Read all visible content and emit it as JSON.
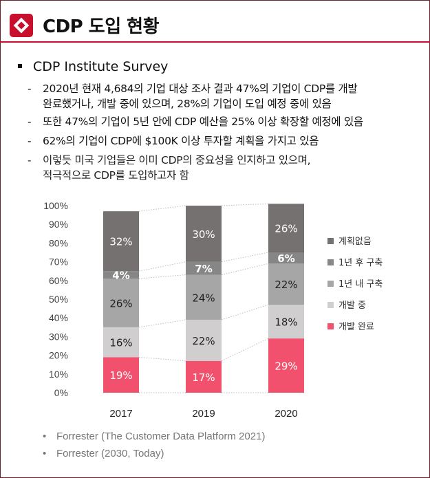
{
  "header": {
    "title": "CDP 도입 현황"
  },
  "colors": {
    "accent": "#c8102e",
    "plan_none": "#767171",
    "plan_1y_after": "#868686",
    "plan_1y_within": "#a6a6a6",
    "developing": "#d0cece",
    "done": "#f1516c"
  },
  "main_bullet": "CDP Institute Survey",
  "sub_bullets": [
    {
      "line1": "2020년 현재 4,684의 기업 대상 조사 결과 47%의 기업이 CDP를 개발",
      "line2": "완료했거나, 개발 중에 있으며, 28%의 기업이 도입 예정 중에 있음"
    },
    {
      "line1": "또한 47%의 기업이 5년 안에 CDP 예산을 25% 이상 확장할 예정에 있음",
      "line2": ""
    },
    {
      "line1": "62%의 기업이 CDP에 $100K 이상 투자할 계획을 가지고 있음",
      "line2": ""
    },
    {
      "line1": "이렇듯 미국 기업들은 이미 CDP의 중요성을 인지하고 있으며,",
      "line2": "적극적으로 CDP를 도입하고자 함"
    }
  ],
  "chart_data": {
    "type": "bar",
    "stacked": true,
    "normalized": true,
    "categories": [
      "2017",
      "2019",
      "2020"
    ],
    "series": [
      {
        "name": "개발 완료",
        "values": [
          19,
          17,
          29
        ],
        "labels": [
          "19%",
          "17%",
          "29%"
        ],
        "color": "#f1516c"
      },
      {
        "name": "개발 중",
        "values": [
          16,
          22,
          18
        ],
        "labels": [
          "16%",
          "22%",
          "18%"
        ],
        "color": "#d0cece"
      },
      {
        "name": "1년 내 구축",
        "values": [
          26,
          24,
          22
        ],
        "labels": [
          "26%",
          "24%",
          "22%"
        ],
        "color": "#a6a6a6"
      },
      {
        "name": "1년 후 구축",
        "values": [
          4,
          7,
          6
        ],
        "labels": [
          "4%",
          "7%",
          "6%"
        ],
        "color": "#868686"
      },
      {
        "name": "계획없음",
        "values": [
          32,
          30,
          26
        ],
        "labels": [
          "32%",
          "30%",
          "26%"
        ],
        "color": "#767171"
      }
    ],
    "ylim": [
      0,
      100
    ],
    "yticks": [
      "0%",
      "10%",
      "20%",
      "30%",
      "40%",
      "50%",
      "60%",
      "70%",
      "80%",
      "90%",
      "100%"
    ],
    "legend": {
      "placement": "right",
      "order": [
        "계획없음",
        "1년 후 구축",
        "1년 내 구축",
        "개발 중",
        "개발 완료"
      ]
    },
    "connector_lines": true,
    "grid": false
  },
  "sources": [
    "Forrester (The Customer Data Platform 2021)",
    "Forrester (2030, Today)"
  ]
}
